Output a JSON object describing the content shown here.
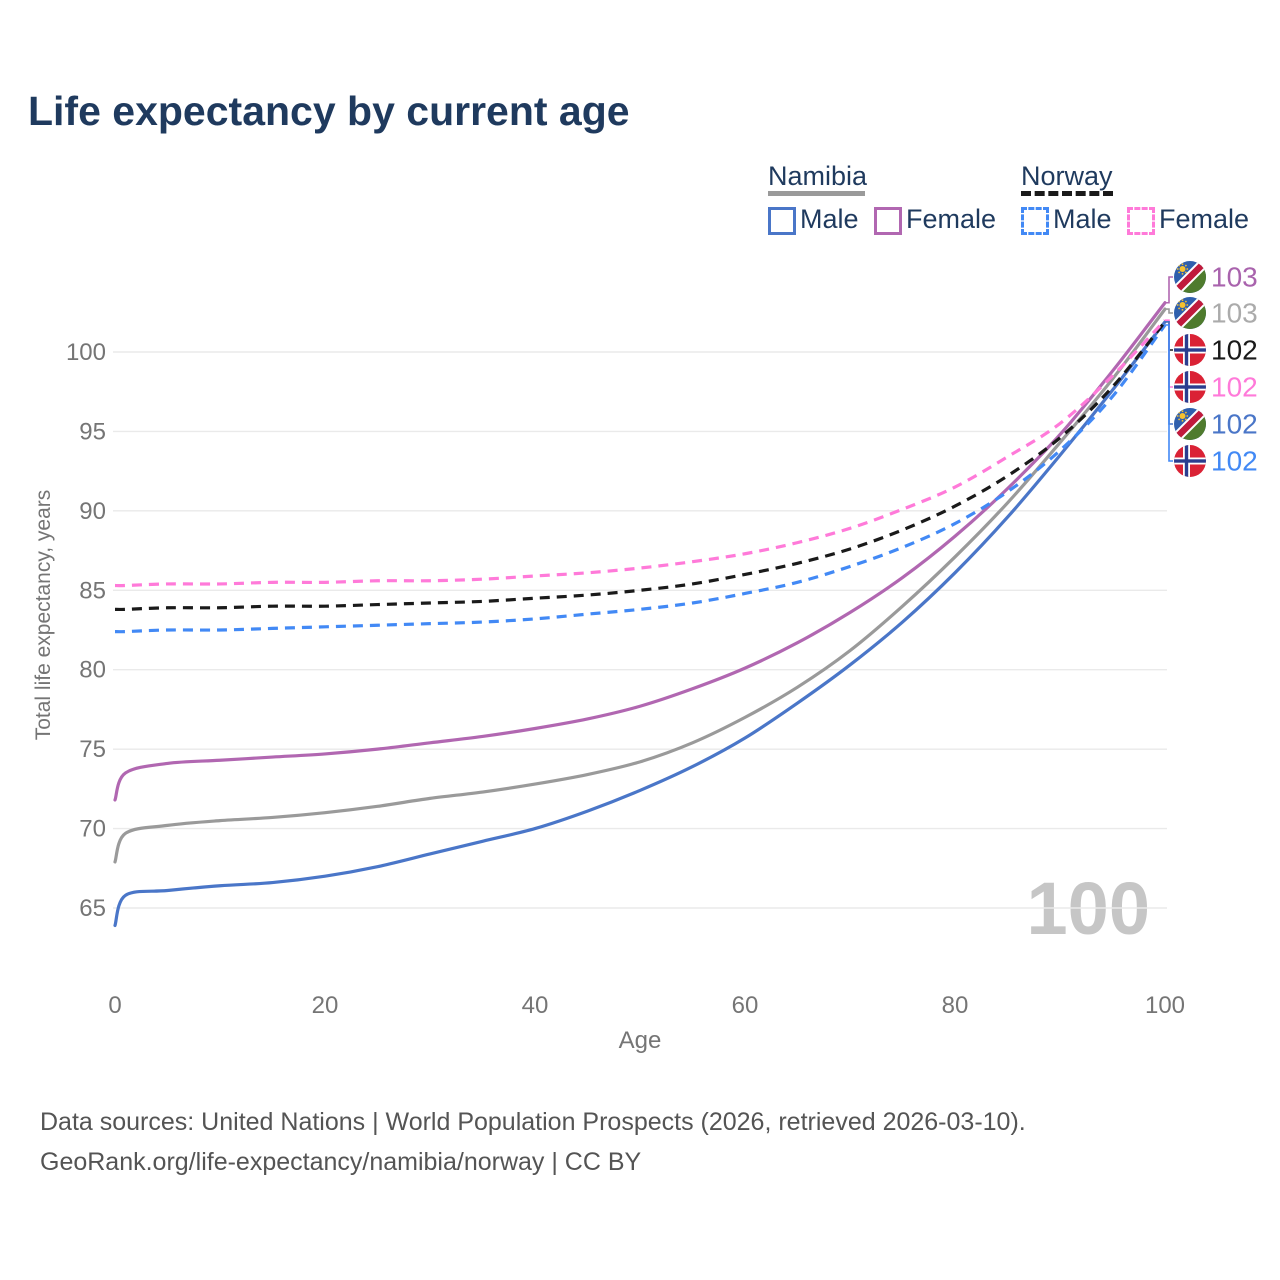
{
  "title": "Life expectancy by current age",
  "legend": {
    "groups": [
      {
        "label": "Namibia",
        "line_style": "solid",
        "line_color": "#9a9a9a",
        "items": [
          {
            "label": "Male",
            "color": "#4a76c8",
            "dashed": false
          },
          {
            "label": "Female",
            "color": "#b167b1",
            "dashed": false
          }
        ]
      },
      {
        "label": "Norway",
        "line_style": "dashed",
        "line_color": "#1a1a1a",
        "items": [
          {
            "label": "Male",
            "color": "#4289f5",
            "dashed": true
          },
          {
            "label": "Female",
            "color": "#ff7ad9",
            "dashed": true
          }
        ]
      }
    ]
  },
  "chart_data": {
    "type": "line",
    "title": "Life expectancy by current age",
    "xlabel": "Age",
    "ylabel": "Total life expectancy, years",
    "xlim": [
      0,
      100
    ],
    "ylim": [
      63,
      104
    ],
    "xticks": [
      0,
      20,
      40,
      60,
      80,
      100
    ],
    "yticks": [
      65,
      70,
      75,
      80,
      85,
      90,
      95,
      100
    ],
    "grid": true,
    "legend_position": "top-right",
    "watermark": "100",
    "x": [
      0,
      1,
      5,
      10,
      15,
      20,
      25,
      30,
      35,
      40,
      45,
      50,
      55,
      60,
      65,
      70,
      75,
      80,
      85,
      90,
      95,
      100
    ],
    "series": [
      {
        "name": "Namibia Male",
        "country": "Namibia",
        "sex": "Male",
        "color": "#4a76c8",
        "dashed": false,
        "values": [
          63.9,
          65.8,
          66.1,
          66.4,
          66.6,
          67.0,
          67.6,
          68.4,
          69.2,
          70.0,
          71.1,
          72.4,
          73.9,
          75.7,
          77.9,
          80.3,
          83.0,
          86.1,
          89.6,
          93.5,
          97.6,
          101.9
        ]
      },
      {
        "name": "Namibia Both sexes",
        "country": "Namibia",
        "sex": "Both",
        "color": "#9a9a9a",
        "dashed": false,
        "values": [
          67.9,
          69.7,
          70.2,
          70.5,
          70.7,
          71.0,
          71.4,
          71.9,
          72.3,
          72.8,
          73.4,
          74.2,
          75.4,
          77.0,
          78.9,
          81.2,
          84.0,
          87.1,
          90.5,
          94.3,
          98.3,
          102.7
        ]
      },
      {
        "name": "Namibia Female",
        "country": "Namibia",
        "sex": "Female",
        "color": "#b167b1",
        "dashed": false,
        "values": [
          71.8,
          73.5,
          74.1,
          74.3,
          74.5,
          74.7,
          75.0,
          75.4,
          75.8,
          76.3,
          76.9,
          77.7,
          78.8,
          80.1,
          81.7,
          83.6,
          85.8,
          88.4,
          91.4,
          94.8,
          98.8,
          103.1
        ]
      },
      {
        "name": "Norway Male",
        "country": "Norway",
        "sex": "Male",
        "color": "#4289f5",
        "dashed": true,
        "values": [
          82.4,
          82.4,
          82.5,
          82.5,
          82.6,
          82.7,
          82.8,
          82.9,
          83.0,
          83.2,
          83.5,
          83.8,
          84.2,
          84.8,
          85.5,
          86.5,
          87.7,
          89.2,
          91.2,
          93.8,
          97.2,
          101.7
        ]
      },
      {
        "name": "Norway Both sexes",
        "country": "Norway",
        "sex": "Both",
        "color": "#1a1a1a",
        "dashed": true,
        "values": [
          83.8,
          83.8,
          83.9,
          83.9,
          84.0,
          84.0,
          84.1,
          84.2,
          84.3,
          84.5,
          84.7,
          85.0,
          85.4,
          86.0,
          86.7,
          87.6,
          88.8,
          90.3,
          92.2,
          94.6,
          97.8,
          101.9
        ]
      },
      {
        "name": "Norway Female",
        "country": "Norway",
        "sex": "Female",
        "color": "#ff7ad9",
        "dashed": true,
        "values": [
          85.3,
          85.3,
          85.4,
          85.4,
          85.5,
          85.5,
          85.6,
          85.6,
          85.7,
          85.9,
          86.1,
          86.4,
          86.8,
          87.3,
          88.0,
          88.9,
          90.1,
          91.5,
          93.4,
          95.5,
          98.5,
          102.0
        ]
      }
    ],
    "end_labels": [
      {
        "text": "103",
        "flag": "namibia-flag-icon",
        "color": "#a963ad",
        "series": "Namibia Female"
      },
      {
        "text": "103",
        "flag": "namibia-flag-icon",
        "color": "#ababab",
        "series": "Namibia Both sexes"
      },
      {
        "text": "102",
        "flag": "norway-flag-icon",
        "color": "#1a1a1a",
        "series": "Norway Both sexes"
      },
      {
        "text": "102",
        "flag": "norway-flag-icon",
        "color": "#ff7ad9",
        "series": "Norway Female"
      },
      {
        "text": "102",
        "flag": "namibia-flag-icon",
        "color": "#4a76c8",
        "series": "Namibia Male"
      },
      {
        "text": "102",
        "flag": "norway-flag-icon",
        "color": "#4289f5",
        "series": "Norway Male"
      }
    ]
  },
  "footer": {
    "line1": "Data sources: United Nations | World Population Prospects (2026, retrieved 2026-03-10).",
    "line2": "GeoRank.org/life-expectancy/namibia/norway | CC BY"
  }
}
